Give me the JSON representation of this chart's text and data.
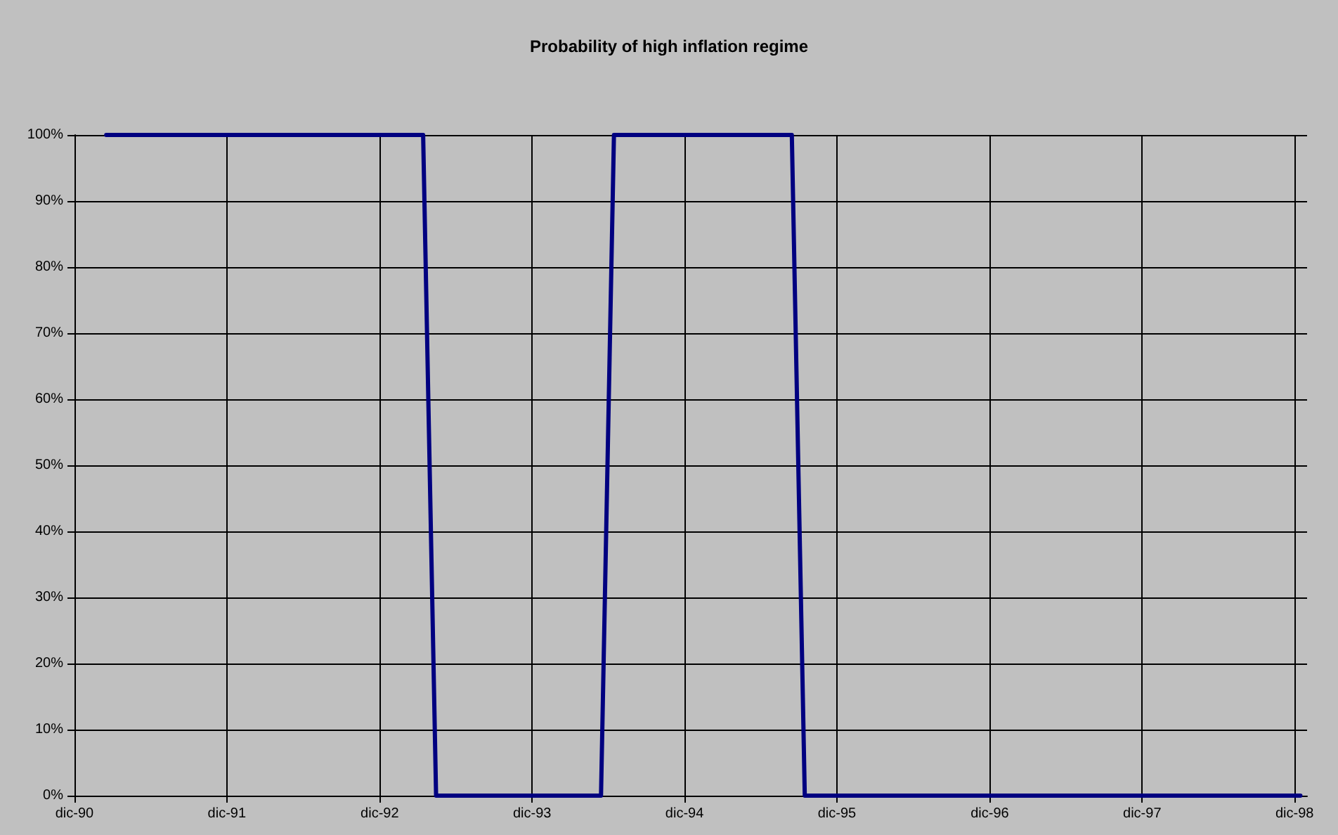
{
  "chart_data": {
    "type": "line",
    "title": "Probability of high inflation regime",
    "x": [
      "1991-02-15",
      "1993-03-15",
      "1993-04-15",
      "1994-05-15",
      "1994-06-15",
      "1995-08-15",
      "1995-09-15",
      "1998-12-15"
    ],
    "values": [
      100,
      100,
      0,
      0,
      100,
      100,
      0,
      0
    ],
    "color": "#000080",
    "xlim": [
      "1990-12",
      "1998-12-31"
    ],
    "xticks": [
      {
        "value": "1990-12",
        "label": "dic-90"
      },
      {
        "value": "1991-12",
        "label": "dic-91"
      },
      {
        "value": "1992-12",
        "label": "dic-92"
      },
      {
        "value": "1993-12",
        "label": "dic-93"
      },
      {
        "value": "1994-12",
        "label": "dic-94"
      },
      {
        "value": "1995-12",
        "label": "dic-95"
      },
      {
        "value": "1996-12",
        "label": "dic-96"
      },
      {
        "value": "1997-12",
        "label": "dic-97"
      },
      {
        "value": "1998-12",
        "label": "dic-98"
      }
    ],
    "ylim": [
      0,
      100
    ],
    "yticks": [
      {
        "value": 0,
        "label": "0%"
      },
      {
        "value": 10,
        "label": "10%"
      },
      {
        "value": 20,
        "label": "20%"
      },
      {
        "value": 30,
        "label": "30%"
      },
      {
        "value": 40,
        "label": "40%"
      },
      {
        "value": 50,
        "label": "50%"
      },
      {
        "value": 60,
        "label": "60%"
      },
      {
        "value": 70,
        "label": "70%"
      },
      {
        "value": 80,
        "label": "80%"
      },
      {
        "value": 90,
        "label": "90%"
      },
      {
        "value": 100,
        "label": "100%"
      }
    ],
    "grid": true,
    "marker": "none",
    "line_style": "solid"
  }
}
